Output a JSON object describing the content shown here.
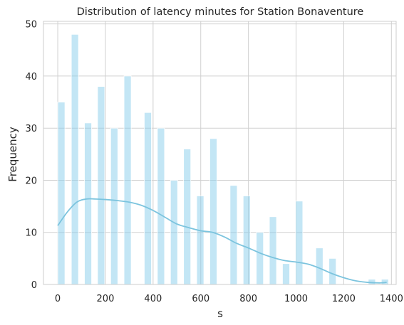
{
  "chart_data": {
    "type": "bar",
    "title": "Distribution of latency minutes for Station Bonaventure",
    "xlabel": "s",
    "ylabel": "Frequency",
    "xlim": [
      -60,
      1420
    ],
    "ylim": [
      0,
      50.5
    ],
    "xticks": [
      "0",
      "200",
      "400",
      "600",
      "800",
      "1000",
      "1200",
      "1400"
    ],
    "yticks": [
      "0",
      "10",
      "20",
      "30",
      "40",
      "50"
    ],
    "grid": true,
    "bar_color": "#87CEEB",
    "kde_color": "#7CC4DE",
    "bins": [
      {
        "x0": 0,
        "x1": 30,
        "count": 35
      },
      {
        "x0": 57,
        "x1": 87,
        "count": 48
      },
      {
        "x0": 112,
        "x1": 142,
        "count": 31
      },
      {
        "x0": 167,
        "x1": 197,
        "count": 38
      },
      {
        "x0": 222,
        "x1": 252,
        "count": 30
      },
      {
        "x0": 278,
        "x1": 308,
        "count": 40
      },
      {
        "x0": 363,
        "x1": 393,
        "count": 33
      },
      {
        "x0": 418,
        "x1": 448,
        "count": 30
      },
      {
        "x0": 473,
        "x1": 503,
        "count": 20
      },
      {
        "x0": 528,
        "x1": 558,
        "count": 26
      },
      {
        "x0": 583,
        "x1": 613,
        "count": 17
      },
      {
        "x0": 638,
        "x1": 668,
        "count": 28
      },
      {
        "x0": 723,
        "x1": 753,
        "count": 19
      },
      {
        "x0": 778,
        "x1": 808,
        "count": 17
      },
      {
        "x0": 833,
        "x1": 863,
        "count": 10
      },
      {
        "x0": 888,
        "x1": 918,
        "count": 13
      },
      {
        "x0": 943,
        "x1": 973,
        "count": 4
      },
      {
        "x0": 998,
        "x1": 1028,
        "count": 16
      },
      {
        "x0": 1083,
        "x1": 1113,
        "count": 7
      },
      {
        "x0": 1138,
        "x1": 1168,
        "count": 5
      },
      {
        "x0": 1303,
        "x1": 1333,
        "count": 1
      },
      {
        "x0": 1358,
        "x1": 1388,
        "count": 1
      }
    ],
    "kde": {
      "x": [
        0,
        40,
        80,
        120,
        160,
        200,
        250,
        300,
        350,
        400,
        450,
        500,
        550,
        600,
        650,
        700,
        750,
        800,
        850,
        900,
        950,
        1000,
        1050,
        1100,
        1150,
        1200,
        1250,
        1300,
        1350,
        1380
      ],
      "y": [
        11.3,
        13.9,
        15.8,
        16.4,
        16.4,
        16.3,
        16.1,
        15.8,
        15.2,
        14.2,
        12.9,
        11.6,
        10.9,
        10.3,
        10.0,
        9.1,
        7.9,
        7.0,
        6.0,
        5.2,
        4.6,
        4.3,
        3.9,
        3.1,
        2.1,
        1.3,
        0.7,
        0.4,
        0.3,
        0.4
      ]
    }
  }
}
